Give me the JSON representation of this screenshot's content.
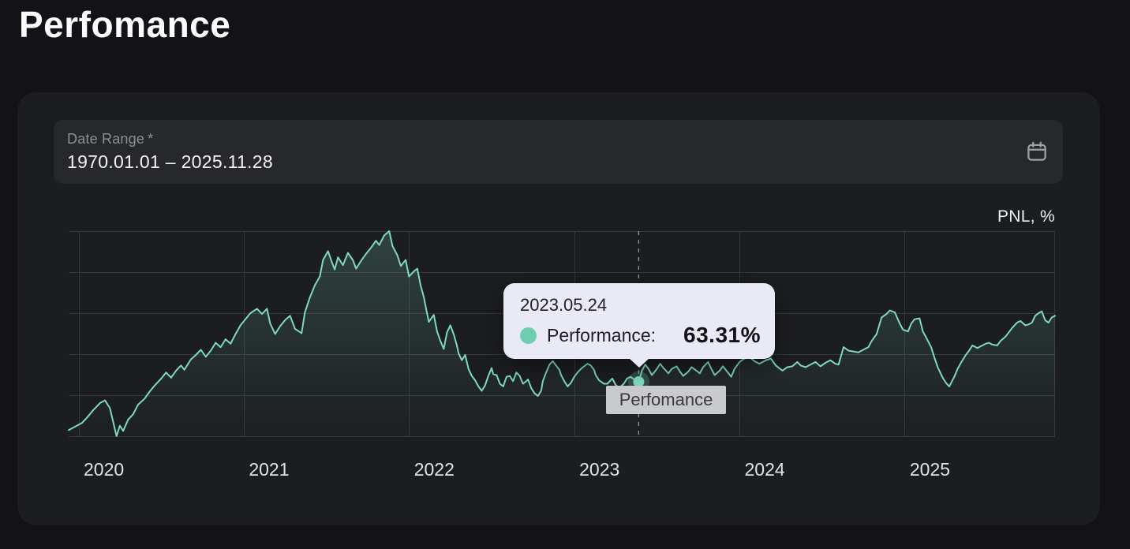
{
  "page": {
    "title": "Perfomance"
  },
  "date_range_field": {
    "label": "Date Range",
    "required_marker": "*",
    "value": "1970.01.01 – 2025.11.28",
    "icon": "calendar-icon"
  },
  "chart": {
    "unit_label": "PNL, %",
    "series_badge": "Perfomance",
    "tooltip": {
      "date": "2023.05.24",
      "series_label": "Performance:",
      "value": "63.31%"
    }
  },
  "chart_data": {
    "type": "area",
    "title": "Perfomance",
    "ylabel": "PNL, %",
    "grid": true,
    "legend": "none",
    "x_ticks": [
      2020,
      2021,
      2022,
      2023,
      2024,
      2025
    ],
    "x_range": [
      2019.94,
      2025.91
    ],
    "y_range_pct": [
      0,
      236
    ],
    "h_gridlines": 6,
    "highlight": {
      "t": 2023.39,
      "v": 63.31,
      "date": "2023.05.24",
      "label": "Performance:",
      "value_text": "63.31%"
    },
    "series": [
      {
        "name": "Perfomance",
        "color": "#7ed9bd",
        "points": [
          [
            2019.94,
            8
          ],
          [
            2019.98,
            12
          ],
          [
            2020.02,
            16
          ],
          [
            2020.05,
            22
          ],
          [
            2020.09,
            31
          ],
          [
            2020.13,
            39
          ],
          [
            2020.16,
            42
          ],
          [
            2020.19,
            33
          ],
          [
            2020.21,
            17
          ],
          [
            2020.23,
            1
          ],
          [
            2020.25,
            13
          ],
          [
            2020.27,
            7
          ],
          [
            2020.3,
            20
          ],
          [
            2020.33,
            26
          ],
          [
            2020.36,
            37
          ],
          [
            2020.4,
            44
          ],
          [
            2020.43,
            52
          ],
          [
            2020.46,
            59
          ],
          [
            2020.5,
            67
          ],
          [
            2020.53,
            74
          ],
          [
            2020.56,
            68
          ],
          [
            2020.59,
            76
          ],
          [
            2020.62,
            82
          ],
          [
            2020.64,
            77
          ],
          [
            2020.68,
            89
          ],
          [
            2020.71,
            94
          ],
          [
            2020.74,
            100
          ],
          [
            2020.77,
            92
          ],
          [
            2020.8,
            99
          ],
          [
            2020.83,
            108
          ],
          [
            2020.86,
            103
          ],
          [
            2020.89,
            112
          ],
          [
            2020.92,
            107
          ],
          [
            2020.95,
            118
          ],
          [
            2020.98,
            128
          ],
          [
            2021.01,
            135
          ],
          [
            2021.04,
            142
          ],
          [
            2021.08,
            147
          ],
          [
            2021.11,
            141
          ],
          [
            2021.14,
            147
          ],
          [
            2021.16,
            130
          ],
          [
            2021.19,
            118
          ],
          [
            2021.22,
            127
          ],
          [
            2021.25,
            134
          ],
          [
            2021.28,
            139
          ],
          [
            2021.31,
            124
          ],
          [
            2021.35,
            119
          ],
          [
            2021.37,
            143
          ],
          [
            2021.4,
            160
          ],
          [
            2021.43,
            174
          ],
          [
            2021.46,
            184
          ],
          [
            2021.48,
            203
          ],
          [
            2021.51,
            213
          ],
          [
            2021.53,
            202
          ],
          [
            2021.55,
            192
          ],
          [
            2021.57,
            206
          ],
          [
            2021.6,
            197
          ],
          [
            2021.63,
            211
          ],
          [
            2021.66,
            203
          ],
          [
            2021.68,
            193
          ],
          [
            2021.71,
            202
          ],
          [
            2021.74,
            210
          ],
          [
            2021.77,
            217
          ],
          [
            2021.8,
            225
          ],
          [
            2021.82,
            220
          ],
          [
            2021.85,
            231
          ],
          [
            2021.88,
            236
          ],
          [
            2021.9,
            219
          ],
          [
            2021.93,
            208
          ],
          [
            2021.95,
            196
          ],
          [
            2021.98,
            203
          ],
          [
            2022,
            184
          ],
          [
            2022.03,
            190
          ],
          [
            2022.05,
            193
          ],
          [
            2022.07,
            174
          ],
          [
            2022.09,
            160
          ],
          [
            2022.1,
            150
          ],
          [
            2022.12,
            132
          ],
          [
            2022.15,
            140
          ],
          [
            2022.17,
            121
          ],
          [
            2022.19,
            110
          ],
          [
            2022.21,
            101
          ],
          [
            2022.23,
            120
          ],
          [
            2022.25,
            128
          ],
          [
            2022.27,
            118
          ],
          [
            2022.29,
            105
          ],
          [
            2022.3,
            96
          ],
          [
            2022.32,
            88
          ],
          [
            2022.34,
            94
          ],
          [
            2022.36,
            78
          ],
          [
            2022.38,
            70
          ],
          [
            2022.4,
            65
          ],
          [
            2022.42,
            58
          ],
          [
            2022.44,
            53
          ],
          [
            2022.46,
            59
          ],
          [
            2022.48,
            70
          ],
          [
            2022.5,
            79
          ],
          [
            2022.51,
            72
          ],
          [
            2022.53,
            71
          ],
          [
            2022.55,
            61
          ],
          [
            2022.57,
            58
          ],
          [
            2022.59,
            69
          ],
          [
            2022.61,
            70
          ],
          [
            2022.63,
            64
          ],
          [
            2022.65,
            74
          ],
          [
            2022.67,
            70
          ],
          [
            2022.69,
            61
          ],
          [
            2022.71,
            64
          ],
          [
            2022.72,
            66
          ],
          [
            2022.74,
            56
          ],
          [
            2022.76,
            50
          ],
          [
            2022.78,
            47
          ],
          [
            2022.8,
            53
          ],
          [
            2022.81,
            64
          ],
          [
            2022.83,
            74
          ],
          [
            2022.85,
            83
          ],
          [
            2022.87,
            87
          ],
          [
            2022.89,
            82
          ],
          [
            2022.91,
            77
          ],
          [
            2022.92,
            71
          ],
          [
            2022.94,
            64
          ],
          [
            2022.96,
            58
          ],
          [
            2022.98,
            62
          ],
          [
            2023,
            69
          ],
          [
            2023.02,
            74
          ],
          [
            2023.04,
            78
          ],
          [
            2023.06,
            81
          ],
          [
            2023.08,
            84
          ],
          [
            2023.1,
            82
          ],
          [
            2023.12,
            77
          ],
          [
            2023.13,
            71
          ],
          [
            2023.15,
            65
          ],
          [
            2023.18,
            61
          ],
          [
            2023.2,
            61
          ],
          [
            2023.23,
            67
          ],
          [
            2023.25,
            60
          ],
          [
            2023.27,
            56
          ],
          [
            2023.3,
            61
          ],
          [
            2023.32,
            67
          ],
          [
            2023.34,
            69
          ],
          [
            2023.37,
            65
          ],
          [
            2023.39,
            63.31
          ],
          [
            2023.41,
            76
          ],
          [
            2023.43,
            83
          ],
          [
            2023.45,
            78
          ],
          [
            2023.47,
            71
          ],
          [
            2023.5,
            78
          ],
          [
            2023.52,
            84
          ],
          [
            2023.54,
            79
          ],
          [
            2023.57,
            73
          ],
          [
            2023.59,
            78
          ],
          [
            2023.62,
            81
          ],
          [
            2023.64,
            75
          ],
          [
            2023.66,
            70
          ],
          [
            2023.69,
            75
          ],
          [
            2023.71,
            80
          ],
          [
            2023.74,
            76
          ],
          [
            2023.76,
            73
          ],
          [
            2023.78,
            80
          ],
          [
            2023.81,
            86
          ],
          [
            2023.83,
            78
          ],
          [
            2023.85,
            71
          ],
          [
            2023.88,
            76
          ],
          [
            2023.9,
            81
          ],
          [
            2023.93,
            74
          ],
          [
            2023.95,
            69
          ],
          [
            2023.97,
            78
          ],
          [
            2024,
            86
          ],
          [
            2024.03,
            90
          ],
          [
            2024.06,
            92
          ],
          [
            2024.09,
            87
          ],
          [
            2024.12,
            84
          ],
          [
            2024.16,
            88
          ],
          [
            2024.19,
            90
          ],
          [
            2024.22,
            82
          ],
          [
            2024.26,
            76
          ],
          [
            2024.29,
            80
          ],
          [
            2024.32,
            81
          ],
          [
            2024.35,
            86
          ],
          [
            2024.37,
            82
          ],
          [
            2024.4,
            80
          ],
          [
            2024.43,
            83
          ],
          [
            2024.46,
            86
          ],
          [
            2024.49,
            81
          ],
          [
            2024.52,
            85
          ],
          [
            2024.55,
            88
          ],
          [
            2024.58,
            84
          ],
          [
            2024.6,
            83
          ],
          [
            2024.63,
            103
          ],
          [
            2024.66,
            99
          ],
          [
            2024.69,
            98
          ],
          [
            2024.72,
            97
          ],
          [
            2024.75,
            100
          ],
          [
            2024.78,
            103
          ],
          [
            2024.8,
            110
          ],
          [
            2024.83,
            118
          ],
          [
            2024.86,
            137
          ],
          [
            2024.89,
            141
          ],
          [
            2024.91,
            145
          ],
          [
            2024.94,
            143
          ],
          [
            2024.97,
            130
          ],
          [
            2024.99,
            123
          ],
          [
            2025.02,
            121
          ],
          [
            2025.04,
            130
          ],
          [
            2025.06,
            135
          ],
          [
            2025.09,
            136
          ],
          [
            2025.11,
            121
          ],
          [
            2025.13,
            114
          ],
          [
            2025.16,
            103
          ],
          [
            2025.18,
            91
          ],
          [
            2025.2,
            80
          ],
          [
            2025.23,
            68
          ],
          [
            2025.25,
            62
          ],
          [
            2025.27,
            58
          ],
          [
            2025.3,
            69
          ],
          [
            2025.32,
            78
          ],
          [
            2025.34,
            85
          ],
          [
            2025.37,
            94
          ],
          [
            2025.39,
            99
          ],
          [
            2025.41,
            105
          ],
          [
            2025.44,
            102
          ],
          [
            2025.46,
            104
          ],
          [
            2025.49,
            107
          ],
          [
            2025.51,
            108
          ],
          [
            2025.53,
            106
          ],
          [
            2025.56,
            105
          ],
          [
            2025.58,
            110
          ],
          [
            2025.61,
            115
          ],
          [
            2025.63,
            120
          ],
          [
            2025.65,
            125
          ],
          [
            2025.68,
            131
          ],
          [
            2025.7,
            133
          ],
          [
            2025.73,
            128
          ],
          [
            2025.75,
            129
          ],
          [
            2025.77,
            131
          ],
          [
            2025.79,
            139
          ],
          [
            2025.81,
            142
          ],
          [
            2025.83,
            144
          ],
          [
            2025.85,
            134
          ],
          [
            2025.87,
            131
          ],
          [
            2025.89,
            137
          ],
          [
            2025.91,
            139
          ]
        ]
      }
    ]
  },
  "colors": {
    "accent": "#7ed9bd",
    "tooltip_dot": "#6fceb2",
    "tooltip_bg": "#e9eaf6",
    "badge_bg": "#c9cacd",
    "grid": "#35363b",
    "dashed_cursor": "#8b8c93",
    "page_bg": "#131316",
    "card_bg": "#1c1d21"
  }
}
